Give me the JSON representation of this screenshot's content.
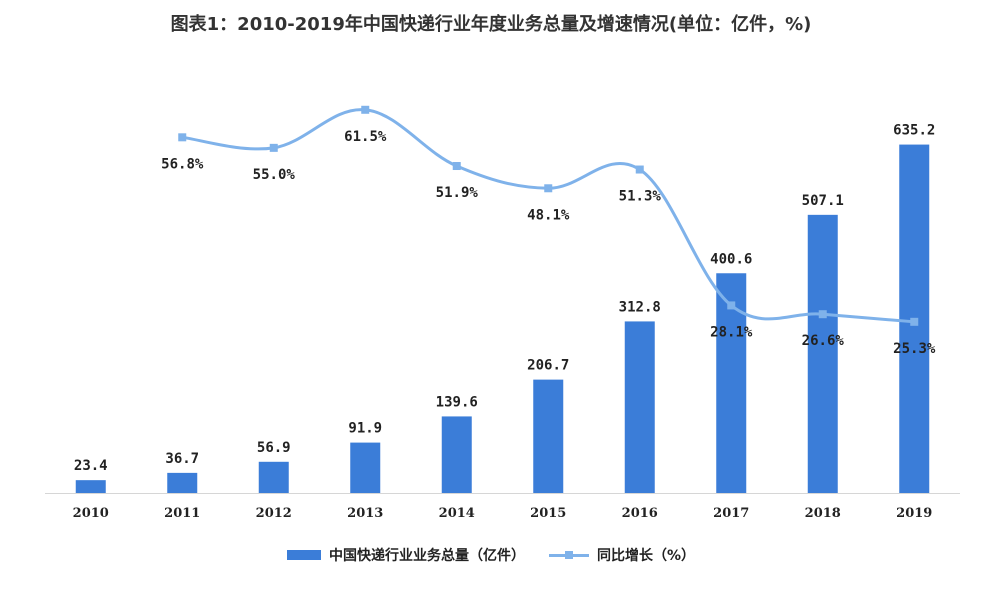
{
  "title": "图表1：2010-2019年中国快递行业年度业务总量及增速情况(单位：亿件，%)",
  "colors": {
    "bar": "#3b7dd8",
    "line": "#7fb2ea",
    "text": "#222222",
    "axis": "#d6d6d6"
  },
  "chart_data": {
    "type": "bar",
    "categories": [
      "2010",
      "2011",
      "2012",
      "2013",
      "2014",
      "2015",
      "2016",
      "2017",
      "2018",
      "2019"
    ],
    "series": [
      {
        "name": "中国快递行业业务总量（亿件）",
        "type": "bar",
        "values": [
          23.4,
          36.7,
          56.9,
          91.9,
          139.6,
          206.7,
          312.8,
          400.6,
          507.1,
          635.2
        ],
        "labels": [
          "23.4",
          "36.7",
          "56.9",
          "91.9",
          "139.6",
          "206.7",
          "312.8",
          "400.6",
          "507.1",
          "635.2"
        ]
      },
      {
        "name": "同比增长（%）",
        "type": "line",
        "values": [
          null,
          56.8,
          55.0,
          61.5,
          51.9,
          48.1,
          51.3,
          28.1,
          26.6,
          25.3
        ],
        "labels": [
          null,
          "56.8%",
          "55.0%",
          "61.5%",
          "51.9%",
          "48.1%",
          "51.3%",
          "28.1%",
          "26.6%",
          "25.3%"
        ]
      }
    ],
    "ylim_bar": [
      0,
      680
    ],
    "ylim_line": [
      0,
      70
    ],
    "legend_position": "bottom",
    "grid": false
  }
}
